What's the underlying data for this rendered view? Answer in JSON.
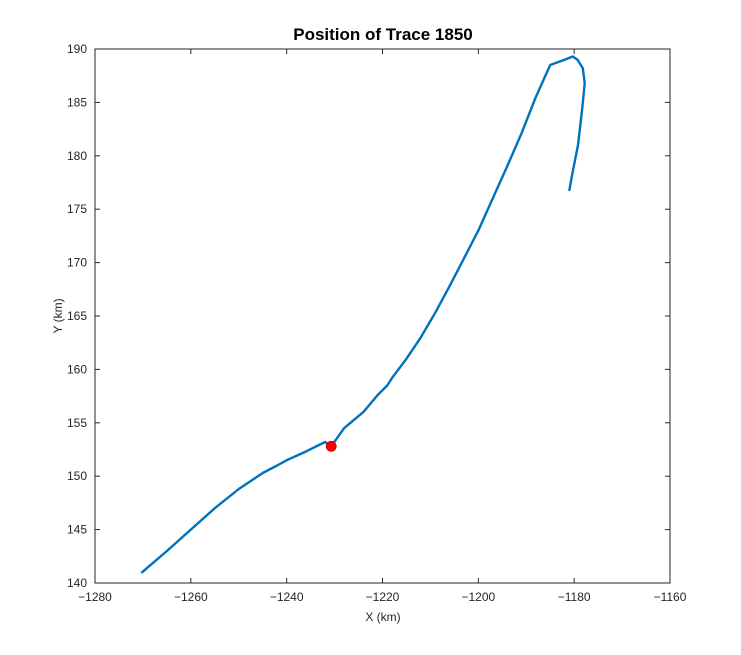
{
  "chart_data": {
    "type": "line",
    "title": "Position of Trace 1850",
    "xlabel": "X (km)",
    "ylabel": "Y (km)",
    "xlim": [
      -1280,
      -1160
    ],
    "ylim": [
      140,
      190
    ],
    "xticks": [
      -1280,
      -1260,
      -1240,
      -1220,
      -1200,
      -1180,
      -1160
    ],
    "yticks": [
      140,
      145,
      150,
      155,
      160,
      165,
      170,
      175,
      180,
      185,
      190
    ],
    "grid": false,
    "series": [
      {
        "color": "#0072BD",
        "x": [
          -1270.2,
          -1265,
          -1260,
          -1255,
          -1250,
          -1245,
          -1242,
          -1240,
          -1236,
          -1232,
          -1230.7,
          -1228,
          -1224,
          -1221,
          -1219,
          -1218,
          -1215,
          -1212,
          -1209,
          -1206,
          -1203,
          -1200,
          -1197,
          -1194,
          -1191,
          -1188,
          -1185,
          -1182,
          -1180.3,
          -1179.3,
          -1178.2,
          -1177.8,
          -1178.3,
          -1179.2,
          -1180.3,
          -1181
        ],
        "y": [
          141.0,
          143.0,
          145.0,
          147.0,
          148.8,
          150.3,
          151.0,
          151.5,
          152.3,
          153.2,
          152.8,
          154.5,
          156.0,
          157.6,
          158.5,
          159.2,
          161.0,
          163.0,
          165.3,
          167.8,
          170.4,
          173.0,
          176.0,
          179.0,
          182.1,
          185.5,
          188.5,
          189.0,
          189.3,
          189.0,
          188.2,
          186.8,
          184.5,
          181.0,
          178.5,
          176.8
        ]
      }
    ],
    "marker": {
      "x": -1230.7,
      "y": 152.8,
      "color": "#FF0000"
    }
  }
}
